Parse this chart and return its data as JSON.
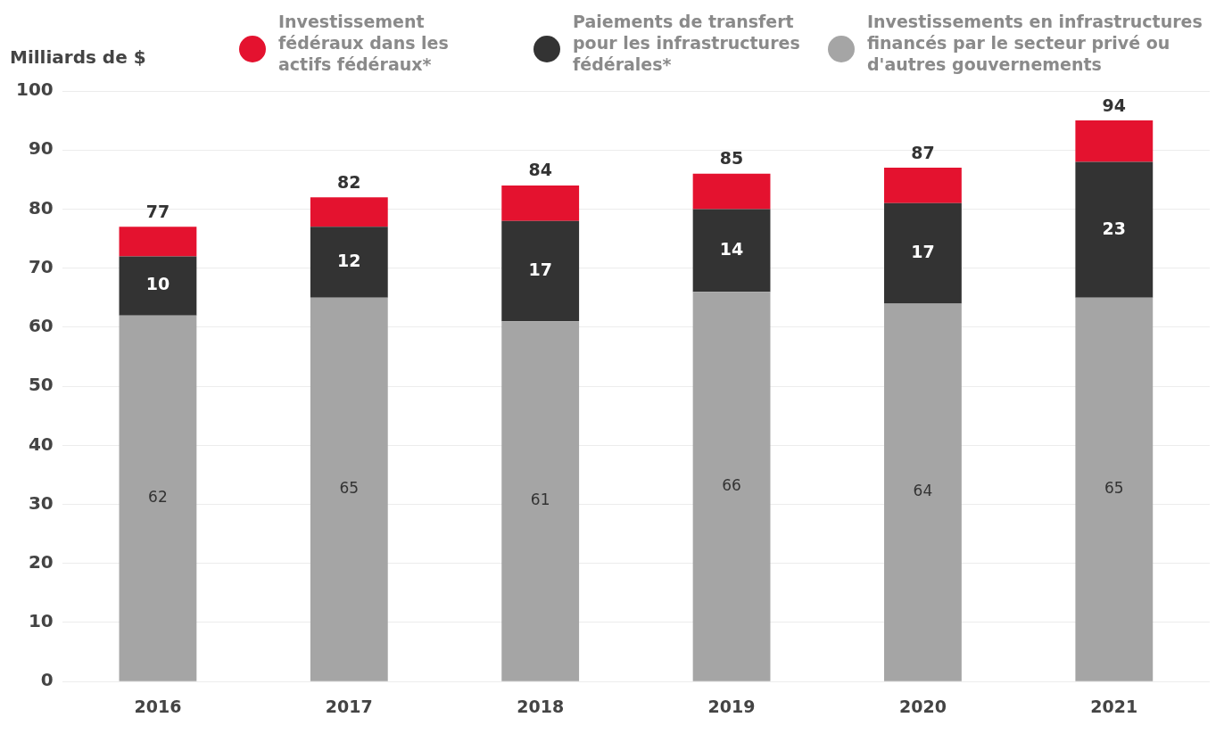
{
  "chart_data": {
    "type": "bar",
    "stacked": true,
    "ylabel": "Milliards de $",
    "categories": [
      "2016",
      "2017",
      "2018",
      "2019",
      "2020",
      "2021"
    ],
    "series": [
      {
        "name": "Investissements en infrastructures financés par le secteur privé ou d'autres gouvernements",
        "color": "#a5a5a5",
        "values": [
          62,
          65,
          61,
          66,
          64,
          65
        ],
        "value_labels": [
          "62",
          "65",
          "61",
          "66",
          "64",
          "65"
        ]
      },
      {
        "name": "Paiements de transfert pour les infrastructures fédérales*",
        "color": "#333333",
        "values": [
          10,
          12,
          17,
          14,
          17,
          23
        ],
        "value_labels": [
          "10",
          "12",
          "17",
          "14",
          "17",
          "23"
        ]
      },
      {
        "name": "Investissement fédéraux dans les actifs fédéraux*",
        "color": "#e4122f",
        "values": [
          5,
          5,
          6,
          6,
          6,
          7
        ]
      }
    ],
    "totals": [
      "77",
      "82",
      "84",
      "85",
      "87",
      "94"
    ],
    "ylim": [
      0,
      100
    ],
    "yticks": [
      0,
      10,
      20,
      30,
      40,
      50,
      60,
      70,
      80,
      90,
      100
    ],
    "grid": "y",
    "legend": "top"
  }
}
